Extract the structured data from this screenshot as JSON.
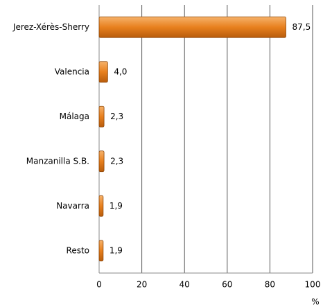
{
  "chart_data": {
    "type": "bar",
    "orientation": "horizontal",
    "categories": [
      "Jerez-Xérès-Sherry",
      "Valencia",
      "Málaga",
      "Manzanilla S.B.",
      "Navarra",
      "Resto"
    ],
    "values": [
      87.5,
      4.0,
      2.3,
      2.3,
      1.9,
      1.9
    ],
    "value_labels": [
      "87,5",
      "4,0",
      "2,3",
      "2,3",
      "1,9",
      "1,9"
    ],
    "color": "#e8801e",
    "xlim": [
      0,
      100
    ],
    "xticks": [
      0,
      20,
      40,
      60,
      80,
      100
    ],
    "xlabel": "%",
    "grid": true
  }
}
